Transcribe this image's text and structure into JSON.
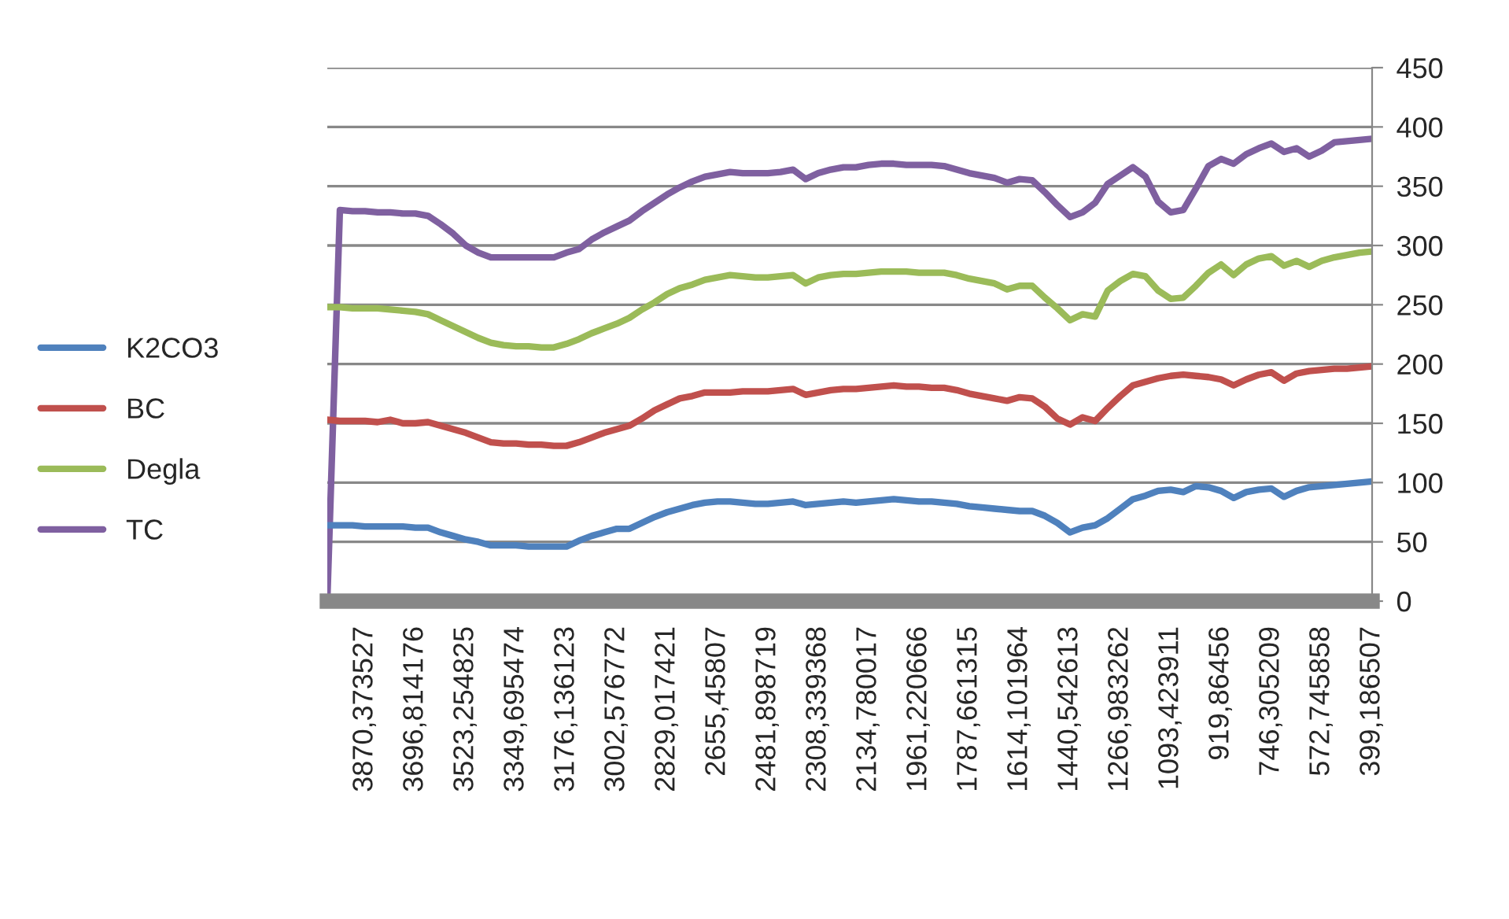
{
  "chart_data": {
    "type": "line",
    "categories": [
      null,
      null,
      null,
      "3870,373527",
      null,
      null,
      null,
      "3696,814176",
      null,
      null,
      null,
      "3523,254825",
      null,
      null,
      null,
      "3349,695474",
      null,
      null,
      null,
      "3176,136123",
      null,
      null,
      null,
      "3002,576772",
      null,
      null,
      null,
      "2829,017421",
      null,
      null,
      null,
      "2655,45807",
      null,
      null,
      null,
      "2481,898719",
      null,
      null,
      null,
      "2308,339368",
      null,
      null,
      null,
      "2134,780017",
      null,
      null,
      null,
      "1961,220666",
      null,
      null,
      null,
      "1787,661315",
      null,
      null,
      null,
      "1614,101964",
      null,
      null,
      null,
      "1440,542613",
      null,
      null,
      null,
      "1266,983262",
      null,
      null,
      null,
      "1093,423911",
      null,
      null,
      null,
      "919,86456",
      null,
      null,
      null,
      "746,305209",
      null,
      null,
      null,
      "572,745858",
      null,
      null,
      null,
      "399,186507"
    ],
    "ylim": [
      0,
      450
    ],
    "yticks": [
      0,
      50,
      100,
      150,
      200,
      250,
      300,
      350,
      400,
      450
    ],
    "grid": "y",
    "legend": "left",
    "marker": "none",
    "line_style": "solid",
    "series": [
      {
        "name": "TC",
        "color": "#7f60a0",
        "values": [
          0,
          330,
          329,
          329,
          328,
          328,
          327,
          327,
          325,
          318,
          310,
          300,
          294,
          290,
          290,
          290,
          290,
          290,
          290,
          294,
          297,
          305,
          311,
          316,
          321,
          329,
          336,
          343,
          349,
          354,
          358,
          360,
          362,
          361,
          361,
          361,
          362,
          364,
          356,
          361,
          364,
          366,
          366,
          368,
          369,
          369,
          368,
          368,
          368,
          367,
          364,
          361,
          359,
          357,
          353,
          356,
          355,
          345,
          334,
          324,
          328,
          336,
          352,
          359,
          366,
          358,
          337,
          328,
          330,
          348,
          367,
          373,
          369,
          377,
          382,
          386,
          379,
          382,
          375,
          380,
          387,
          388,
          389,
          390
        ]
      },
      {
        "name": "Degla",
        "color": "#9bbb59",
        "values": [
          248,
          248,
          247,
          247,
          247,
          246,
          245,
          244,
          242,
          237,
          232,
          227,
          222,
          218,
          216,
          215,
          215,
          214,
          214,
          217,
          221,
          226,
          230,
          234,
          239,
          246,
          252,
          259,
          264,
          267,
          271,
          273,
          275,
          274,
          273,
          273,
          274,
          275,
          268,
          273,
          275,
          276,
          276,
          277,
          278,
          278,
          278,
          277,
          277,
          277,
          275,
          272,
          270,
          268,
          263,
          266,
          266,
          256,
          247,
          237,
          242,
          240,
          262,
          270,
          276,
          274,
          262,
          255,
          256,
          266,
          277,
          284,
          275,
          284,
          289,
          291,
          283,
          287,
          282,
          287,
          290,
          292,
          294,
          295
        ]
      },
      {
        "name": "BC",
        "color": "#c0504d",
        "values": [
          153,
          152,
          152,
          152,
          151,
          153,
          150,
          150,
          151,
          148,
          145,
          142,
          138,
          134,
          133,
          133,
          132,
          132,
          131,
          131,
          134,
          138,
          142,
          145,
          148,
          154,
          161,
          166,
          171,
          173,
          176,
          176,
          176,
          177,
          177,
          177,
          178,
          179,
          174,
          176,
          178,
          179,
          179,
          180,
          181,
          182,
          181,
          181,
          180,
          180,
          178,
          175,
          173,
          171,
          169,
          172,
          171,
          164,
          154,
          149,
          155,
          152,
          163,
          173,
          182,
          185,
          188,
          190,
          191,
          190,
          189,
          187,
          182,
          187,
          191,
          193,
          186,
          192,
          194,
          195,
          196,
          196,
          197,
          198
        ]
      },
      {
        "name": "K2CO3",
        "color": "#4f81bd",
        "values": [
          64,
          64,
          64,
          63,
          63,
          63,
          63,
          62,
          62,
          58,
          55,
          52,
          50,
          47,
          47,
          47,
          46,
          46,
          46,
          46,
          51,
          55,
          58,
          61,
          61,
          66,
          71,
          75,
          78,
          81,
          83,
          84,
          84,
          83,
          82,
          82,
          83,
          84,
          81,
          82,
          83,
          84,
          83,
          84,
          85,
          86,
          85,
          84,
          84,
          83,
          82,
          80,
          79,
          78,
          77,
          76,
          76,
          72,
          66,
          58,
          62,
          64,
          70,
          78,
          86,
          89,
          93,
          94,
          92,
          97,
          96,
          93,
          87,
          92,
          94,
          95,
          88,
          93,
          96,
          97,
          98,
          99,
          100,
          101
        ]
      }
    ]
  }
}
